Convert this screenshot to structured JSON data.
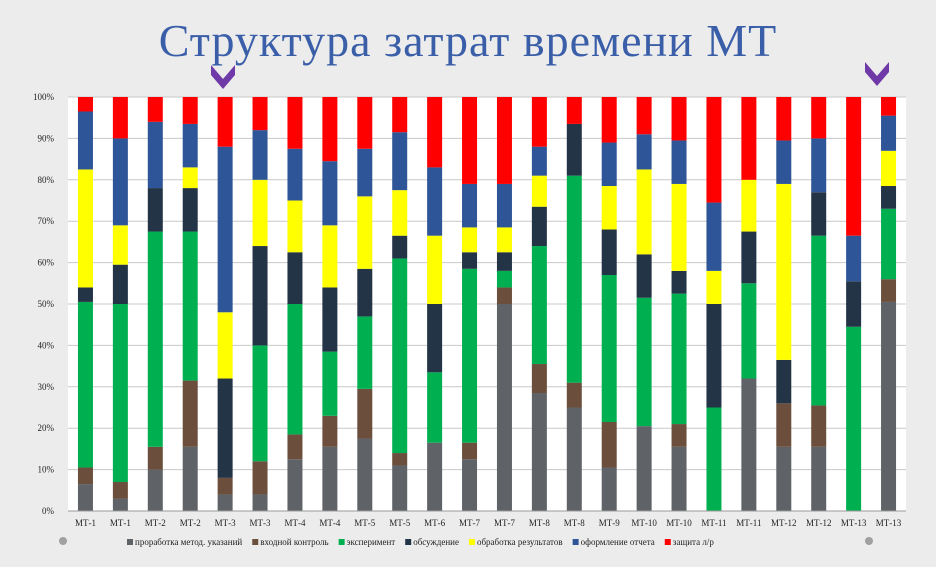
{
  "slide_title": "Структура затрат времени МТ",
  "colors": {
    "проработка метод. указаний": "#5f6368",
    "входной контроль": "#6b4f3c",
    "эксперимент": "#00b050",
    "обсуждение": "#243447",
    "обработка результатов": "#ffff00",
    "оформление отчета": "#2e5597",
    "защита л/р": "#ff0000"
  },
  "chart_data": {
    "type": "bar",
    "stacked": true,
    "title": "",
    "xlabel": "",
    "ylabel": "",
    "ylim": [
      0,
      100
    ],
    "y_ticks": [
      "0%",
      "10%",
      "20%",
      "30%",
      "40%",
      "50%",
      "60%",
      "70%",
      "80%",
      "90%",
      "100%"
    ],
    "legend_position": "bottom",
    "grid": true,
    "categories": [
      "МТ-1",
      "МТ-1",
      "МТ-2",
      "МТ-2",
      "МТ-3",
      "МТ-3",
      "МТ-4",
      "МТ-4",
      "МТ-5",
      "МТ-5",
      "МТ-6",
      "МТ-7",
      "МТ-7",
      "МТ-8",
      "МТ-8",
      "МТ-9",
      "МТ-10",
      "МТ-10",
      "МТ-11",
      "МТ-11",
      "МТ-12",
      "МТ-12",
      "МТ-13",
      "МТ-13"
    ],
    "series": [
      {
        "name": "проработка метод. указаний",
        "values": [
          6.5,
          3,
          10,
          15.5,
          4,
          4,
          12.5,
          15.5,
          17.5,
          11,
          16.5,
          12.5,
          50,
          28.5,
          25,
          10.5,
          20.5,
          15.5,
          0,
          32,
          15.5,
          15.5,
          0,
          50.5
        ]
      },
      {
        "name": "входной контроль",
        "values": [
          4,
          4,
          5.5,
          16,
          4,
          8,
          6,
          7.5,
          12,
          3,
          0,
          4,
          4,
          7,
          6,
          11,
          0,
          5.5,
          0,
          0,
          10.5,
          10,
          0,
          5.5
        ]
      },
      {
        "name": "эксперимент",
        "values": [
          40,
          43,
          52,
          36,
          0,
          28,
          31.5,
          15.5,
          17.5,
          47,
          17,
          42,
          4,
          28.5,
          50,
          35.5,
          31,
          31.5,
          25,
          23,
          0,
          41,
          44.5,
          17
        ]
      },
      {
        "name": "обсуждение",
        "values": [
          3.5,
          9.5,
          10.5,
          10.5,
          24,
          24,
          12.5,
          15.5,
          11.5,
          5.5,
          16.5,
          4,
          4.5,
          9.5,
          12.5,
          11,
          10.5,
          5.5,
          25,
          12.5,
          10.5,
          10.5,
          11,
          5.5
        ]
      },
      {
        "name": "обработка результатов",
        "values": [
          28.5,
          9.5,
          0,
          5,
          16,
          16,
          12.5,
          15,
          17.5,
          11,
          16.5,
          6,
          6,
          7.5,
          0,
          10.5,
          20.5,
          21,
          8,
          12.5,
          42.5,
          0,
          0,
          8.5
        ]
      },
      {
        "name": "оформление отчета",
        "values": [
          14,
          21,
          16,
          10.5,
          40,
          12,
          12.5,
          15.5,
          11.5,
          14,
          16.5,
          10.5,
          10.5,
          7,
          0,
          10.5,
          8.5,
          10.5,
          16.5,
          0,
          10.5,
          13,
          11,
          8.5
        ]
      },
      {
        "name": "защита л/р",
        "values": [
          3.5,
          10,
          6,
          6.5,
          12,
          8,
          12.5,
          15.5,
          12.5,
          8.5,
          17,
          21,
          21,
          12,
          6.5,
          11,
          9,
          10.5,
          25.5,
          20,
          10.5,
          10,
          33.5,
          4.5
        ]
      }
    ]
  },
  "markers": {
    "arrow_left_icon": "chevron-down-icon",
    "arrow_right_icon": "chevron-down-icon"
  }
}
